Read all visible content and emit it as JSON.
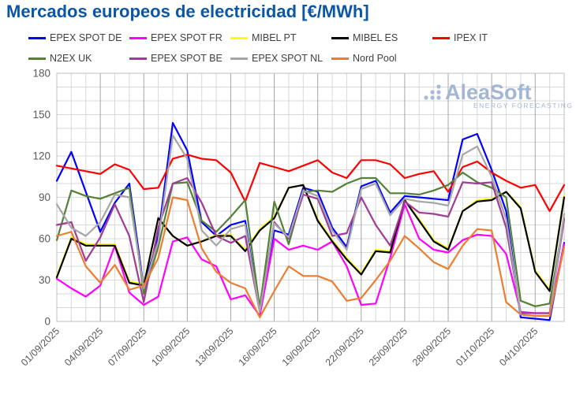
{
  "header": {
    "title": "Mercados europeos de electricidad [€/MWh]"
  },
  "logo": {
    "brand": "AleaSoft",
    "tagline": "ENERGY FORECASTING"
  },
  "axis": {
    "y_tick_labels": [
      "0",
      "30",
      "60",
      "90",
      "120",
      "150",
      "180"
    ],
    "x_tick_labels": [
      "01/09/2025",
      "04/09/2025",
      "07/09/2025",
      "10/09/2025",
      "13/09/2025",
      "16/09/2025",
      "19/09/2025",
      "22/09/2025",
      "25/09/2025",
      "28/09/2025",
      "01/10/2025",
      "04/10/2025"
    ]
  },
  "chart_data": {
    "type": "line",
    "title": "Mercados europeos de electricidad [€/MWh]",
    "xlabel": "",
    "ylabel": "€/MWh",
    "ylim": [
      0,
      180
    ],
    "y_ticks": [
      0,
      30,
      60,
      90,
      120,
      150,
      180
    ],
    "grid": true,
    "legend_position": "top",
    "x_days": 36,
    "x_first_date": "01/09/2025",
    "x_last_date": "06/10/2025",
    "x_label_every": 3,
    "series": [
      {
        "name": "EPEX SPOT DE",
        "color": "#0000ff",
        "values": [
          102,
          123,
          94,
          65,
          86,
          100,
          24,
          62,
          144,
          124,
          72,
          62,
          70,
          73,
          7,
          66,
          63,
          97,
          94,
          68,
          54,
          98,
          102,
          79,
          91,
          90,
          89,
          88,
          132,
          136,
          110,
          80,
          3,
          2,
          1,
          57
        ]
      },
      {
        "name": "EPEX SPOT FR",
        "color": "#ff00ff",
        "values": [
          31,
          24,
          18,
          26,
          55,
          21,
          12,
          18,
          58,
          61,
          45,
          40,
          16,
          19,
          4,
          60,
          52,
          55,
          52,
          58,
          40,
          12,
          13,
          46,
          85,
          60,
          52,
          50,
          59,
          63,
          62,
          49,
          7,
          6,
          6,
          56
        ]
      },
      {
        "name": "MIBEL PT",
        "color": "#ffff00",
        "values": [
          33,
          61,
          56,
          56,
          56,
          29,
          27,
          75,
          62,
          55,
          58,
          63,
          63,
          52,
          67,
          76,
          97,
          99,
          74,
          59,
          46,
          35,
          52,
          51,
          88,
          74,
          59,
          53,
          80,
          88,
          89,
          94,
          83,
          37,
          23,
          91
        ]
      },
      {
        "name": "MIBEL ES",
        "color": "#000000",
        "values": [
          32,
          60,
          55,
          55,
          55,
          28,
          26,
          75,
          62,
          55,
          58,
          62,
          62,
          51,
          66,
          75,
          97,
          99,
          73,
          58,
          45,
          34,
          51,
          50,
          88,
          73,
          58,
          52,
          80,
          87,
          88,
          94,
          82,
          36,
          22,
          90
        ]
      },
      {
        "name": "IPEX IT",
        "color": "#ff0000",
        "values": [
          113,
          111,
          109,
          107,
          114,
          110,
          96,
          97,
          118,
          121,
          118,
          117,
          108,
          87,
          115,
          112,
          109,
          113,
          117,
          108,
          104,
          117,
          117,
          114,
          104,
          107,
          109,
          94,
          112,
          116,
          108,
          102,
          97,
          99,
          80,
          99
        ]
      },
      {
        "name": "N2EX UK",
        "color": "#538135",
        "values": [
          59,
          95,
          91,
          89,
          93,
          97,
          20,
          54,
          100,
          101,
          73,
          65,
          76,
          88,
          10,
          87,
          56,
          94,
          95,
          94,
          100,
          104,
          104,
          93,
          93,
          92,
          95,
          99,
          108,
          101,
          97,
          90,
          15,
          11,
          13,
          75
        ]
      },
      {
        "name": "EPEX SPOT BE",
        "color": "#a03c96",
        "values": [
          70,
          72,
          44,
          61,
          85,
          62,
          14,
          68,
          100,
          104,
          86,
          62,
          57,
          62,
          7,
          72,
          60,
          92,
          89,
          62,
          64,
          90,
          70,
          55,
          87,
          79,
          78,
          76,
          101,
          100,
          101,
          68,
          6,
          6,
          6,
          74
        ]
      },
      {
        "name": "EPEX SPOT NL",
        "color": "#a6a6a6",
        "values": [
          85,
          68,
          62,
          72,
          92,
          90,
          24,
          58,
          135,
          118,
          66,
          55,
          67,
          70,
          7,
          71,
          61,
          95,
          91,
          66,
          52,
          96,
          100,
          77,
          89,
          87,
          86,
          84,
          121,
          127,
          105,
          74,
          5,
          4,
          4,
          78
        ]
      },
      {
        "name": "Nord Pool",
        "color": "#ed7d31",
        "values": [
          62,
          65,
          40,
          28,
          41,
          23,
          26,
          46,
          90,
          88,
          53,
          36,
          28,
          24,
          3,
          22,
          40,
          33,
          33,
          29,
          15,
          17,
          30,
          44,
          62,
          53,
          43,
          38,
          55,
          67,
          66,
          14,
          5,
          4,
          4,
          54
        ]
      }
    ]
  },
  "style_colors": {
    "title": "#0b57a4",
    "axis_text": "#595959",
    "grid_minor": "#d9d9d9",
    "grid_major": "#a6a6a6",
    "plot_border": "#bfbfbf",
    "logo": "#9fb4d2"
  }
}
